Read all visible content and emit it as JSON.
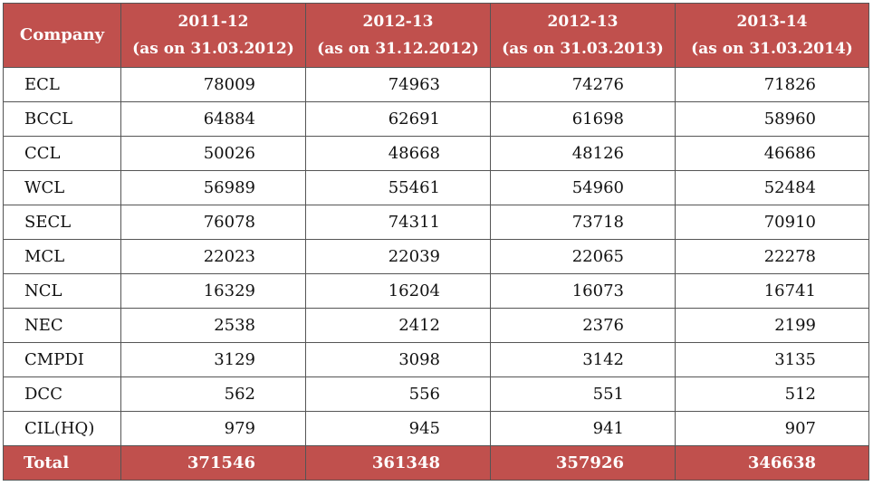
{
  "table": {
    "headers": [
      {
        "line1": "Company",
        "line2": ""
      },
      {
        "line1": "2011-12",
        "line2": "(as on 31.03.2012)"
      },
      {
        "line1": "2012-13",
        "line2": "(as on 31.12.2012)"
      },
      {
        "line1": "2012-13",
        "line2": "(as on 31.03.2013)"
      },
      {
        "line1": "2013-14",
        "line2": "(as on 31.03.2014)"
      }
    ],
    "rows": [
      {
        "company": "ECL",
        "v1": "78009",
        "v2": "74963",
        "v3": "74276",
        "v4": "71826"
      },
      {
        "company": "BCCL",
        "v1": "64884",
        "v2": "62691",
        "v3": "61698",
        "v4": "58960"
      },
      {
        "company": "CCL",
        "v1": "50026",
        "v2": "48668",
        "v3": "48126",
        "v4": "46686"
      },
      {
        "company": "WCL",
        "v1": "56989",
        "v2": "55461",
        "v3": "54960",
        "v4": "52484"
      },
      {
        "company": "SECL",
        "v1": "76078",
        "v2": "74311",
        "v3": "73718",
        "v4": "70910"
      },
      {
        "company": "MCL",
        "v1": "22023",
        "v2": "22039",
        "v3": "22065",
        "v4": "22278"
      },
      {
        "company": "NCL",
        "v1": "16329",
        "v2": "16204",
        "v3": "16073",
        "v4": "16741"
      },
      {
        "company": "NEC",
        "v1": "2538",
        "v2": "2412",
        "v3": "2376",
        "v4": "2199"
      },
      {
        "company": "CMPDI",
        "v1": "3129",
        "v2": "3098",
        "v3": "3142",
        "v4": "3135"
      },
      {
        "company": "DCC",
        "v1": "562",
        "v2": "556",
        "v3": "551",
        "v4": "512"
      },
      {
        "company": "CIL(HQ)",
        "v1": "979",
        "v2": "945",
        "v3": "941",
        "v4": "907"
      }
    ],
    "total": {
      "label": "Total",
      "v1": "371546",
      "v2": "361348",
      "v3": "357926",
      "v4": "346638"
    }
  },
  "colors": {
    "header_bg": "#c0504d",
    "header_text": "#ffffff",
    "border": "#555555"
  }
}
